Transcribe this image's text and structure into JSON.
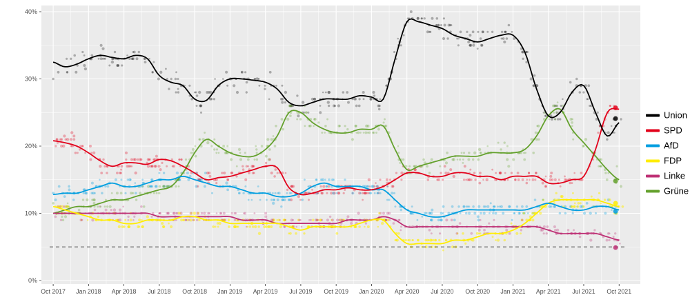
{
  "chart_data": {
    "type": "scatter",
    "title": "",
    "xlabel": "",
    "ylabel": "",
    "description": "German federal election opinion polls Oct 2017 - Oct 2021: individual poll dots with smoothed trend lines per party",
    "panel_background": "#ebebeb",
    "grid_major_color": "#ffffff",
    "grid_minor_color": "#ffffff",
    "axis_text_color": "#4d4d4d",
    "tick_mark_color": "#333333",
    "ylim": [
      0,
      41.5
    ],
    "y_ticks": [
      0,
      10,
      20,
      30,
      40
    ],
    "y_tick_labels": [
      "0%",
      "10%",
      "20%",
      "30%",
      "40%"
    ],
    "y_minor_ticks": [
      5,
      15,
      25,
      35
    ],
    "x_tick_months": [
      0,
      3,
      6,
      9,
      12,
      15,
      18,
      21,
      24,
      27,
      30,
      33,
      36,
      39,
      42,
      45,
      48
    ],
    "x_tick_labels": [
      "Oct 2017",
      "Jan 2018",
      "Apr 2018",
      "Jul 2018",
      "Oct 2018",
      "Jan 2019",
      "Apr 2019",
      "Jul 2019",
      "Oct 2019",
      "Jan 2020",
      "Apr 2020",
      "Jul 2020",
      "Oct 2020",
      "Jan 2021",
      "Apr 2021",
      "Jul 2021",
      "Oct 2021"
    ],
    "threshold_line": {
      "value": 5,
      "style": "dashed",
      "color": "#3c3c3c"
    },
    "legend_position": "right",
    "series": [
      {
        "key": "union",
        "name": "Union",
        "color": "#000000",
        "point_opacity": 0.28,
        "scatter_spread": 1.5,
        "final_value": 24.1,
        "monthly_values": [
          32.5,
          31.8,
          32.2,
          33,
          33.5,
          33.2,
          33,
          33.5,
          33,
          30.5,
          29.5,
          29,
          27,
          26.8,
          29,
          30,
          30,
          29.8,
          29.5,
          28.5,
          26.5,
          26,
          26.5,
          27,
          27,
          27,
          27.5,
          27.3,
          27,
          33,
          38.5,
          38.5,
          38,
          37.5,
          36.5,
          36,
          35.5,
          36,
          36.5,
          36.5,
          34,
          28.5,
          24.5,
          25,
          28,
          29,
          25,
          21.5,
          23.5
        ]
      },
      {
        "key": "spd",
        "name": "SPD",
        "color": "#e2001a",
        "point_opacity": 0.3,
        "scatter_spread": 1.2,
        "final_value": 25.7,
        "monthly_values": [
          20.8,
          20.5,
          20,
          19,
          17.8,
          17,
          17.5,
          17.5,
          17.3,
          18,
          17.8,
          17,
          16,
          15,
          15.3,
          15.5,
          16,
          16.5,
          17,
          16.8,
          13.8,
          12.8,
          13,
          13.5,
          13.5,
          13.8,
          13.5,
          13.5,
          14,
          15,
          16,
          16,
          15.5,
          15.5,
          16,
          16,
          15.5,
          15.5,
          15,
          15.5,
          15.5,
          15.5,
          14.5,
          14.5,
          15,
          15.5,
          19.5,
          25,
          25.5
        ]
      },
      {
        "key": "afd",
        "name": "AfD",
        "color": "#009ee0",
        "point_opacity": 0.32,
        "scatter_spread": 1.1,
        "final_value": 10.3,
        "monthly_values": [
          12.8,
          13,
          13,
          13.5,
          14,
          14.5,
          14,
          14,
          14.5,
          15,
          15,
          15.5,
          15,
          14.5,
          14,
          14,
          13.5,
          13,
          13,
          12.5,
          12.5,
          13,
          14,
          14.5,
          14,
          14,
          14,
          13.5,
          13.5,
          12,
          10.5,
          10,
          9.5,
          9.5,
          10,
          10.5,
          10.5,
          10.5,
          10.5,
          10.5,
          10.5,
          11,
          11.5,
          11,
          10.5,
          10.5,
          11,
          11,
          10.5
        ]
      },
      {
        "key": "fdp",
        "name": "FDP",
        "color": "#ffed00",
        "point_opacity": 0.5,
        "scatter_spread": 1.0,
        "final_value": 11.5,
        "monthly_values": [
          11,
          10.5,
          10,
          9.5,
          9,
          9,
          8.5,
          8.5,
          9,
          9,
          9,
          9.5,
          9.5,
          9,
          9,
          8.5,
          8.5,
          8.5,
          8.5,
          8.5,
          8,
          7.5,
          8,
          8,
          8,
          8,
          8.5,
          9,
          9,
          7,
          5.5,
          5.5,
          5.5,
          5.5,
          6,
          6,
          6.5,
          7,
          7,
          7.5,
          8.5,
          10,
          11.5,
          12,
          12,
          12,
          12,
          11.5,
          11
        ]
      },
      {
        "key": "linke",
        "name": "Linke",
        "color": "#be3075",
        "point_opacity": 0.3,
        "scatter_spread": 0.9,
        "final_value": 4.9,
        "monthly_values": [
          10,
          10,
          10,
          10,
          10,
          10,
          10,
          10,
          10,
          9.5,
          9.5,
          9.5,
          9.5,
          9.5,
          9.5,
          9.5,
          9,
          9,
          9,
          8.5,
          8.5,
          8.5,
          8.5,
          8.5,
          8.5,
          9,
          9,
          9,
          9.5,
          9,
          8,
          8,
          8,
          8,
          8,
          8,
          8,
          8,
          8,
          8,
          8,
          8,
          7.5,
          7,
          7,
          7,
          7,
          6.5,
          6
        ]
      },
      {
        "key": "gruene",
        "name": "Grüne",
        "color": "#64a12d",
        "point_opacity": 0.3,
        "scatter_spread": 1.4,
        "final_value": 14.8,
        "monthly_values": [
          10,
          10.5,
          11,
          11,
          11.5,
          12,
          12,
          12.5,
          13,
          13.5,
          14,
          16,
          19,
          21,
          20,
          19,
          18.5,
          18.5,
          19.5,
          21.5,
          25,
          25,
          23.5,
          22.5,
          22,
          22,
          22.5,
          22.5,
          23,
          19.5,
          16.5,
          17,
          17.5,
          18,
          18.5,
          18.5,
          18.5,
          19,
          19,
          19,
          19.5,
          21.5,
          24.5,
          25.5,
          22.5,
          20.5,
          18.5,
          16.5,
          15
        ]
      }
    ]
  }
}
